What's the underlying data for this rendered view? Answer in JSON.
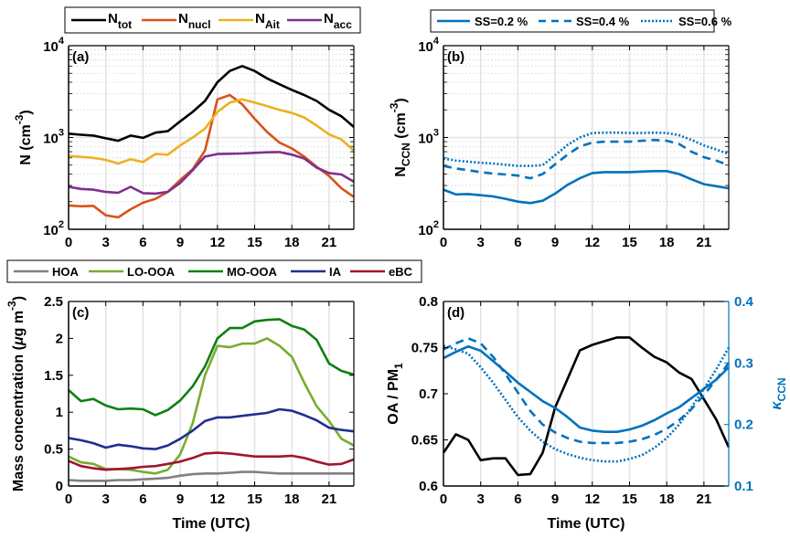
{
  "chart_data": [
    {
      "id": "a",
      "type": "line",
      "panel_label": "(a)",
      "ylabel": "N (cm^-3)",
      "ylabel_parts": {
        "main": "N (cm",
        "sup": "-3",
        "close": ")"
      },
      "xlabel": "",
      "yscale": "log",
      "ylim": [
        100,
        10000
      ],
      "xlim": [
        0,
        23
      ],
      "xticks": [
        0,
        3,
        6,
        9,
        12,
        15,
        18,
        21
      ],
      "xtick_labels": [
        "0",
        "3",
        "6",
        "9",
        "12",
        "15",
        "18",
        "21"
      ],
      "yticks": [
        100,
        1000,
        10000
      ],
      "ytick_labels": [
        {
          "base": "10",
          "exp": "2"
        },
        {
          "base": "10",
          "exp": "3"
        },
        {
          "base": "10",
          "exp": "4"
        }
      ],
      "grid": true,
      "legend": {
        "placement": "top",
        "entries": [
          {
            "base": "N",
            "sub": "tot"
          },
          {
            "base": "N",
            "sub": "nucl"
          },
          {
            "base": "N",
            "sub": "Ait"
          },
          {
            "base": "N",
            "sub": "acc"
          }
        ]
      },
      "x": [
        0,
        1,
        2,
        3,
        4,
        5,
        6,
        7,
        8,
        9,
        10,
        11,
        12,
        13,
        14,
        15,
        16,
        17,
        18,
        19,
        20,
        21,
        22,
        23
      ],
      "series": [
        {
          "name": "N_tot",
          "color": "#000000",
          "style": "solid",
          "values": [
            1100,
            1070,
            1050,
            980,
            920,
            1050,
            990,
            1130,
            1170,
            1500,
            1900,
            2500,
            4000,
            5300,
            6000,
            5300,
            4400,
            3800,
            3300,
            2900,
            2500,
            2000,
            1700,
            1300
          ]
        },
        {
          "name": "N_nucl",
          "color": "#D95319",
          "style": "solid",
          "values": [
            182,
            178,
            180,
            142,
            135,
            165,
            195,
            215,
            255,
            345,
            450,
            720,
            2600,
            2900,
            2300,
            1600,
            1150,
            880,
            760,
            620,
            480,
            380,
            280,
            225
          ]
        },
        {
          "name": "N_Ait",
          "color": "#EDB120",
          "style": "solid",
          "values": [
            630,
            615,
            600,
            570,
            520,
            580,
            540,
            660,
            650,
            820,
            1000,
            1250,
            1900,
            2400,
            2600,
            2400,
            2200,
            2000,
            1850,
            1650,
            1350,
            1080,
            950,
            720
          ]
        },
        {
          "name": "N_acc",
          "color": "#7E2F8E",
          "style": "solid",
          "values": [
            290,
            275,
            270,
            255,
            250,
            290,
            248,
            245,
            255,
            320,
            440,
            620,
            660,
            665,
            670,
            680,
            690,
            695,
            650,
            590,
            470,
            410,
            395,
            330
          ]
        }
      ]
    },
    {
      "id": "b",
      "type": "line",
      "panel_label": "(b)",
      "ylabel": "N_CCN (cm^-3)",
      "ylabel_parts": {
        "main": "N",
        "sub": "CCN",
        "rest": " (cm",
        "sup": "-3",
        "close": ")"
      },
      "xlabel": "",
      "yscale": "log",
      "ylim": [
        100,
        10000
      ],
      "xlim": [
        0,
        23
      ],
      "xticks": [
        0,
        3,
        6,
        9,
        12,
        15,
        18,
        21
      ],
      "xtick_labels": [
        "0",
        "3",
        "6",
        "9",
        "12",
        "15",
        "18",
        "21"
      ],
      "yticks": [
        100,
        1000,
        10000
      ],
      "ytick_labels": [
        {
          "base": "10",
          "exp": "2"
        },
        {
          "base": "10",
          "exp": "3"
        },
        {
          "base": "10",
          "exp": "4"
        }
      ],
      "grid": true,
      "legend": {
        "placement": "top",
        "entries": [
          "SS=0.2 %",
          "SS=0.4 %",
          "SS=0.6 %"
        ]
      },
      "x": [
        0,
        1,
        2,
        3,
        4,
        5,
        6,
        7,
        8,
        9,
        10,
        11,
        12,
        13,
        14,
        15,
        16,
        17,
        18,
        19,
        20,
        21,
        22,
        23
      ],
      "series": [
        {
          "name": "SS=0.2 %",
          "color": "#0072BD",
          "style": "solid",
          "values": [
            270,
            240,
            242,
            235,
            228,
            215,
            200,
            193,
            205,
            245,
            305,
            360,
            410,
            420,
            420,
            420,
            425,
            430,
            430,
            400,
            350,
            310,
            295,
            280
          ]
        },
        {
          "name": "SS=0.4 %",
          "color": "#0072BD",
          "style": "dashed",
          "values": [
            490,
            460,
            440,
            420,
            405,
            395,
            385,
            360,
            400,
            510,
            650,
            800,
            880,
            900,
            900,
            900,
            920,
            940,
            920,
            850,
            700,
            610,
            560,
            500
          ]
        },
        {
          "name": "SS=0.6 %",
          "color": "#0072BD",
          "style": "dotted",
          "values": [
            590,
            560,
            545,
            530,
            520,
            505,
            490,
            490,
            500,
            640,
            830,
            1000,
            1120,
            1130,
            1130,
            1120,
            1120,
            1130,
            1120,
            1060,
            940,
            820,
            740,
            660
          ]
        }
      ]
    },
    {
      "id": "c",
      "type": "line",
      "panel_label": "(c)",
      "ylabel": "Mass concentration (μg m^-3)",
      "ylabel_parts": {
        "main": "Mass concentration (",
        "mu": "μ",
        "rest": "g m",
        "sup": "-3",
        "close": ")"
      },
      "xlabel": "Time (UTC)",
      "ylim": [
        0,
        2.5
      ],
      "xlim": [
        0,
        23
      ],
      "xticks": [
        0,
        3,
        6,
        9,
        12,
        15,
        18,
        21
      ],
      "xtick_labels": [
        "0",
        "3",
        "6",
        "9",
        "12",
        "15",
        "18",
        "21"
      ],
      "yticks": [
        0,
        0.5,
        1,
        1.5,
        2,
        2.5
      ],
      "ytick_labels": [
        "0",
        "0.5",
        "1",
        "1.5",
        "2",
        "2.5"
      ],
      "grid": true,
      "legend": {
        "placement": "top",
        "entries": [
          "HOA",
          "LO-OOA",
          "MO-OOA",
          "IA",
          "eBC"
        ]
      },
      "x": [
        0,
        1,
        2,
        3,
        4,
        5,
        6,
        7,
        8,
        9,
        10,
        11,
        12,
        13,
        14,
        15,
        16,
        17,
        18,
        19,
        20,
        21,
        22,
        23
      ],
      "series": [
        {
          "name": "HOA",
          "color": "#808080",
          "values": [
            0.08,
            0.07,
            0.07,
            0.07,
            0.08,
            0.08,
            0.09,
            0.1,
            0.11,
            0.14,
            0.16,
            0.17,
            0.17,
            0.18,
            0.19,
            0.19,
            0.18,
            0.17,
            0.17,
            0.17,
            0.17,
            0.17,
            0.17,
            0.17
          ]
        },
        {
          "name": "LO-OOA",
          "color": "#77AC30",
          "values": [
            0.4,
            0.32,
            0.3,
            0.23,
            0.23,
            0.22,
            0.19,
            0.17,
            0.22,
            0.43,
            0.85,
            1.5,
            1.9,
            1.88,
            1.93,
            1.93,
            2.0,
            1.9,
            1.75,
            1.4,
            1.08,
            0.88,
            0.64,
            0.55
          ]
        },
        {
          "name": "MO-OOA",
          "color": "#0F7F12",
          "values": [
            1.3,
            1.15,
            1.18,
            1.09,
            1.04,
            1.05,
            1.04,
            0.96,
            1.03,
            1.16,
            1.35,
            1.62,
            2.0,
            2.14,
            2.14,
            2.23,
            2.25,
            2.26,
            2.17,
            2.12,
            1.98,
            1.66,
            1.56,
            1.51
          ]
        },
        {
          "name": "IA",
          "color": "#1F2F8F",
          "values": [
            0.65,
            0.62,
            0.58,
            0.52,
            0.56,
            0.54,
            0.51,
            0.5,
            0.55,
            0.64,
            0.75,
            0.88,
            0.93,
            0.93,
            0.95,
            0.97,
            0.99,
            1.04,
            1.02,
            0.96,
            0.89,
            0.79,
            0.76,
            0.74
          ]
        },
        {
          "name": "eBC",
          "color": "#A2142F",
          "values": [
            0.34,
            0.27,
            0.24,
            0.22,
            0.23,
            0.24,
            0.26,
            0.27,
            0.3,
            0.33,
            0.38,
            0.44,
            0.45,
            0.44,
            0.42,
            0.4,
            0.4,
            0.4,
            0.41,
            0.38,
            0.33,
            0.29,
            0.3,
            0.36
          ]
        }
      ]
    },
    {
      "id": "d",
      "type": "line",
      "panel_label": "(d)",
      "ylabel": "OA / PM_1",
      "ylabel_parts": {
        "main": "OA / PM",
        "sub": "1"
      },
      "ylabel_right": "κ_CCN",
      "ylabel_right_parts": {
        "main": "κ",
        "sub": "CCN"
      },
      "xlabel": "Time (UTC)",
      "ylim": [
        0.6,
        0.8
      ],
      "ylim_right": [
        0.1,
        0.4
      ],
      "xlim": [
        0,
        23
      ],
      "xticks": [
        0,
        3,
        6,
        9,
        12,
        15,
        18,
        21
      ],
      "xtick_labels": [
        "0",
        "3",
        "6",
        "9",
        "12",
        "15",
        "18",
        "21"
      ],
      "yticks": [
        0.6,
        0.65,
        0.7,
        0.75,
        0.8
      ],
      "ytick_labels": [
        "0.6",
        "0.65",
        "0.7",
        "0.75",
        "0.8"
      ],
      "yticks_right": [
        0.1,
        0.2,
        0.3,
        0.4
      ],
      "ytick_labels_right": [
        "0.1",
        "0.2",
        "0.3",
        "0.4"
      ],
      "grid": true,
      "x": [
        0,
        1,
        2,
        3,
        4,
        5,
        6,
        7,
        8,
        9,
        10,
        11,
        12,
        13,
        14,
        15,
        16,
        17,
        18,
        19,
        20,
        21,
        22,
        23
      ],
      "series": [
        {
          "name": "OA/PM1",
          "axis": "left",
          "color": "#000000",
          "style": "solid",
          "values": [
            0.636,
            0.656,
            0.65,
            0.628,
            0.63,
            0.63,
            0.612,
            0.613,
            0.636,
            0.685,
            0.716,
            0.747,
            0.753,
            0.757,
            0.761,
            0.761,
            0.75,
            0.74,
            0.734,
            0.723,
            0.716,
            0.694,
            0.672,
            0.642
          ]
        },
        {
          "name": "kappa SS=0.2 %",
          "axis": "right",
          "color": "#0072BD",
          "style": "solid",
          "values": [
            0.308,
            0.318,
            0.327,
            0.32,
            0.303,
            0.286,
            0.268,
            0.253,
            0.238,
            0.227,
            0.212,
            0.195,
            0.19,
            0.188,
            0.188,
            0.192,
            0.198,
            0.207,
            0.218,
            0.228,
            0.243,
            0.258,
            0.273,
            0.293
          ]
        },
        {
          "name": "kappa SS=0.4 %",
          "axis": "right",
          "color": "#0072BD",
          "style": "dashed",
          "values": [
            0.322,
            0.332,
            0.34,
            0.332,
            0.31,
            0.282,
            0.252,
            0.222,
            0.2,
            0.187,
            0.178,
            0.172,
            0.17,
            0.17,
            0.17,
            0.172,
            0.176,
            0.183,
            0.193,
            0.207,
            0.225,
            0.248,
            0.273,
            0.3
          ]
        },
        {
          "name": "kappa SS=0.6 %",
          "axis": "right",
          "color": "#0072BD",
          "style": "dotted",
          "values": [
            0.328,
            0.322,
            0.315,
            0.293,
            0.268,
            0.24,
            0.212,
            0.19,
            0.172,
            0.16,
            0.152,
            0.146,
            0.142,
            0.14,
            0.14,
            0.144,
            0.15,
            0.162,
            0.178,
            0.2,
            0.228,
            0.258,
            0.29,
            0.325
          ]
        }
      ]
    }
  ]
}
